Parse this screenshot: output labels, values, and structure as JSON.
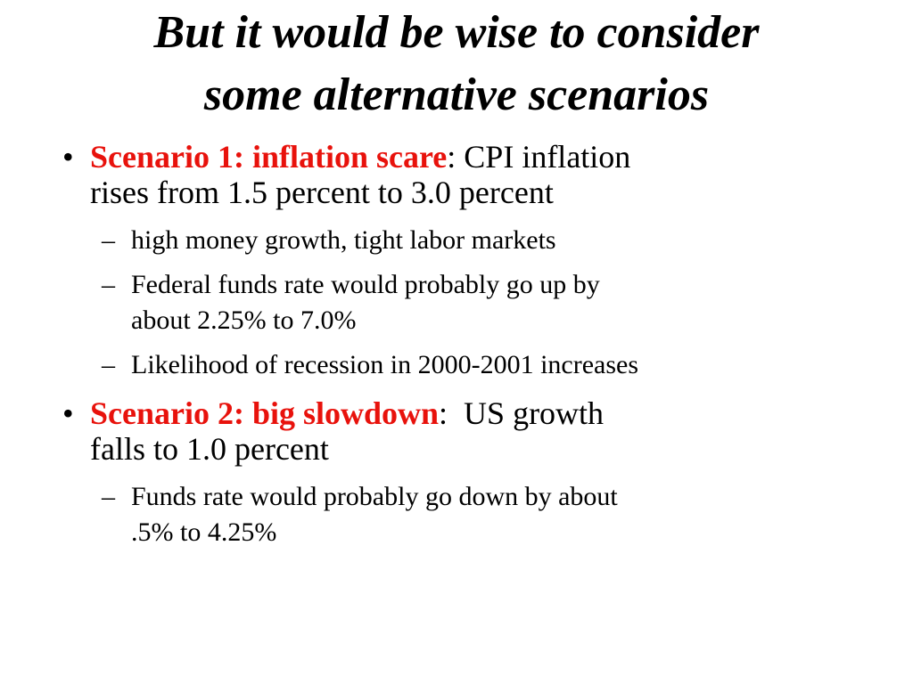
{
  "title": {
    "line1": "But it would be wise to consider",
    "line2": "some alternative scenarios"
  },
  "markers": {
    "bullet": "•",
    "dash": "–"
  },
  "bullets": [
    {
      "label": "Scenario 1: inflation scare",
      "text_line1": ": CPI inflation",
      "text_line2": "rises from 1.5 percent to 3.0 percent",
      "subitems": [
        {
          "line1": "high money growth, tight labor markets",
          "line2": ""
        },
        {
          "line1": "Federal funds rate would probably go up by",
          "line2": "about 2.25% to 7.0%"
        },
        {
          "line1": "Likelihood of recession in 2000-2001 increases",
          "line2": ""
        }
      ]
    },
    {
      "label": "Scenario 2: big slowdown",
      "text_line1": ":  US growth",
      "text_line2": "falls to 1.0 percent",
      "subitems": [
        {
          "line1": "Funds rate would probably go down by about",
          "line2": ".5% to 4.25%"
        }
      ]
    }
  ],
  "colors": {
    "scenario_label": "#e8120c",
    "text": "#000000",
    "background": "#ffffff"
  }
}
